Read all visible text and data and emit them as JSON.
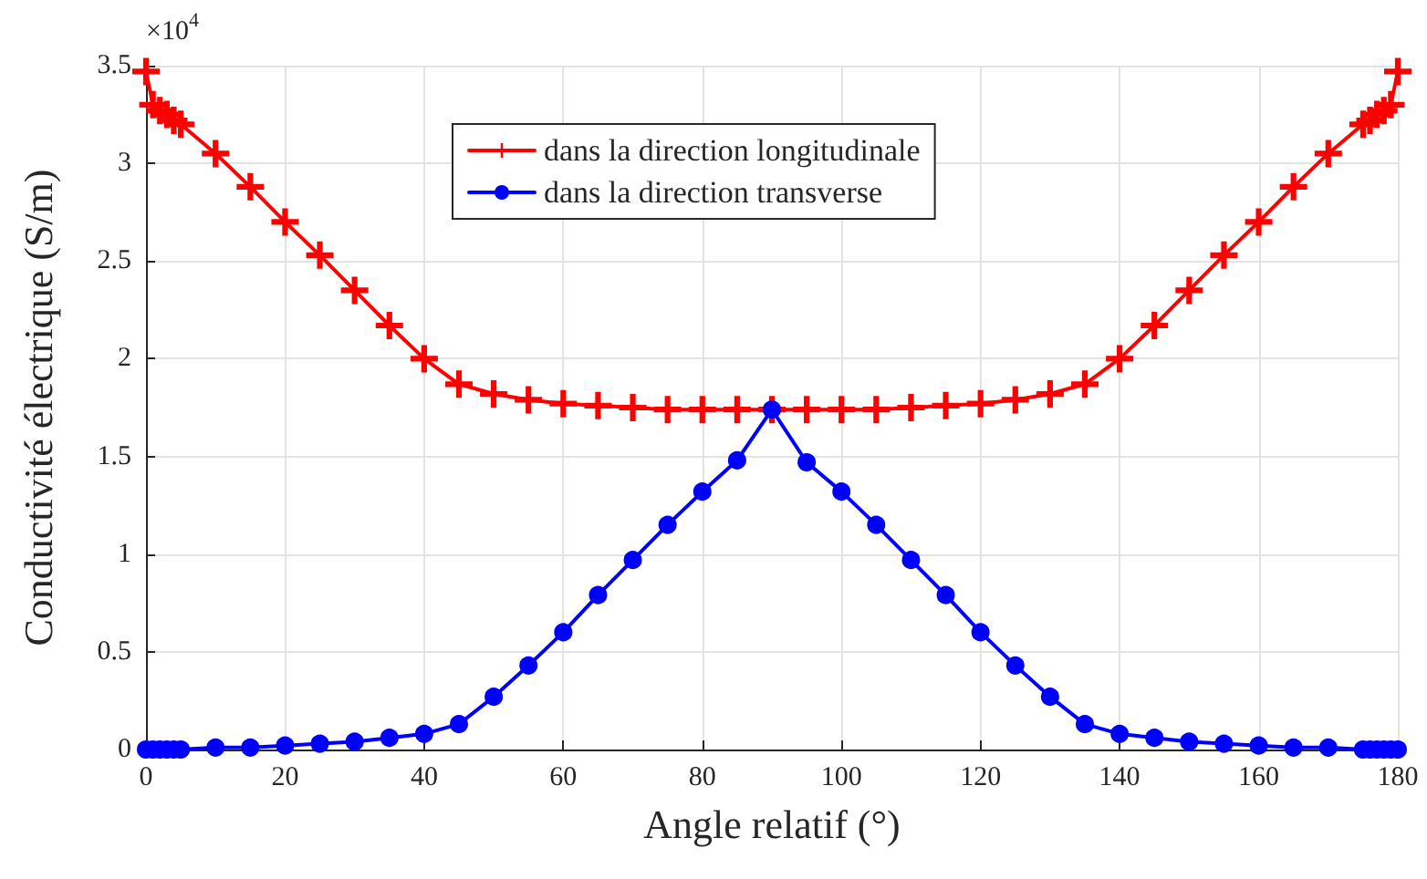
{
  "chart_data": {
    "type": "line",
    "xlabel": "Angle relatif (°)",
    "ylabel": "Conductivité électrique (S/m)",
    "annotations": [
      "×10$^{4}$"
    ],
    "x": [
      0,
      1,
      2,
      3,
      4,
      5,
      10,
      15,
      20,
      25,
      30,
      35,
      40,
      45,
      50,
      55,
      60,
      65,
      70,
      75,
      80,
      85,
      90,
      95,
      100,
      105,
      110,
      115,
      120,
      125,
      130,
      135,
      140,
      145,
      150,
      155,
      160,
      165,
      170,
      175,
      176,
      177,
      178,
      179,
      180
    ],
    "series": [
      {
        "name": "dans la direction longitudinale",
        "color": "#ff0000",
        "marker": "cross",
        "values": [
          3.47,
          3.3,
          3.27,
          3.25,
          3.22,
          3.2,
          3.05,
          2.88,
          2.7,
          2.53,
          2.35,
          2.17,
          2.0,
          1.87,
          1.82,
          1.79,
          1.77,
          1.76,
          1.75,
          1.74,
          1.74,
          1.74,
          1.74,
          1.74,
          1.74,
          1.74,
          1.75,
          1.76,
          1.77,
          1.79,
          1.82,
          1.87,
          2.0,
          2.17,
          2.35,
          2.53,
          2.7,
          2.88,
          3.05,
          3.2,
          3.22,
          3.25,
          3.27,
          3.3,
          3.47
        ]
      },
      {
        "name": "dans la direction transverse",
        "color": "#0000ff",
        "marker": "circle",
        "values": [
          0,
          0,
          0,
          0,
          0,
          0,
          0.01,
          0.01,
          0.02,
          0.03,
          0.04,
          0.06,
          0.08,
          0.13,
          0.27,
          0.43,
          0.6,
          0.79,
          0.97,
          1.15,
          1.32,
          1.48,
          1.74,
          1.47,
          1.32,
          1.15,
          0.97,
          0.79,
          0.6,
          0.43,
          0.27,
          0.13,
          0.08,
          0.06,
          0.04,
          0.03,
          0.02,
          0.01,
          0.01,
          0,
          0,
          0,
          0,
          0,
          0
        ]
      }
    ],
    "xlim": [
      0,
      180
    ],
    "xticks": [
      0,
      20,
      40,
      60,
      80,
      100,
      120,
      140,
      160,
      180
    ],
    "ylim": [
      0,
      3.5
    ],
    "yticks": [
      0,
      0.5,
      1,
      1.5,
      2,
      2.5,
      3,
      3.5
    ],
    "grid": true,
    "legend": "top",
    "line_style": "solid"
  }
}
